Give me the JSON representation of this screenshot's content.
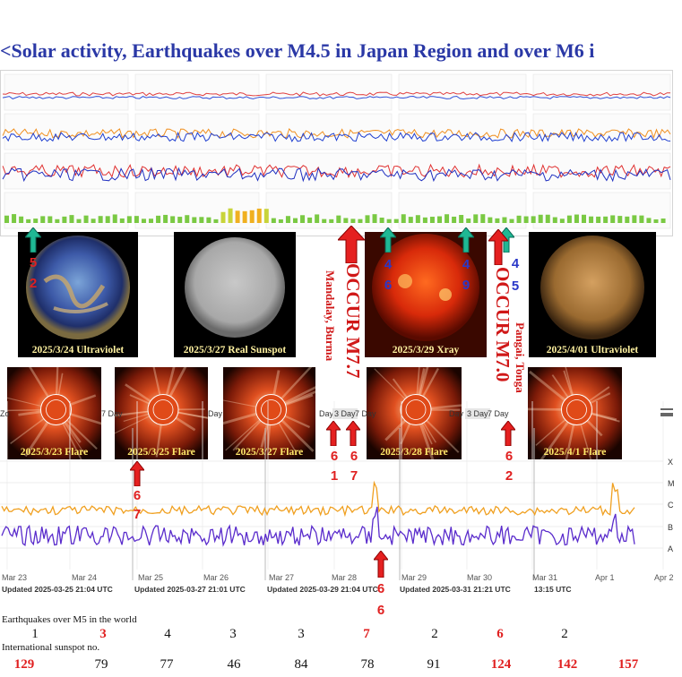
{
  "title": "<Solar activity, Earthquakes over M4.5 in Japan Region and over M6 i",
  "sun_images": [
    {
      "caption": "2025/3/24 Ultraviolet",
      "kind": "uv-blue"
    },
    {
      "caption": "2025/3/27 Real Sunspot",
      "kind": "gray"
    },
    {
      "caption": "2025/3/29 Xray",
      "kind": "xray"
    },
    {
      "caption": "2025/4/01 Ultraviolet",
      "kind": "uv-gold"
    }
  ],
  "flare_images": [
    {
      "caption": "2025/3/23 Flare"
    },
    {
      "caption": "2025/3/25 Flare"
    },
    {
      "caption": "2025/3/27 Flare"
    },
    {
      "caption": "2025/3/28 Flare"
    },
    {
      "caption": "2025/4/1 Flare"
    }
  ],
  "japan_quakes": [
    {
      "digits": [
        "5",
        "2"
      ],
      "color": "#e02020"
    },
    {
      "digits": [
        "4",
        "6"
      ],
      "color": "#2a38c8"
    },
    {
      "digits": [
        "4",
        "9"
      ],
      "color": "#2a38c8"
    },
    {
      "digits": [
        "4",
        "5"
      ],
      "color": "#2a38c8"
    }
  ],
  "world_quakes": [
    {
      "digits": [
        "6",
        "7"
      ]
    },
    {
      "digits": [
        "6",
        "1"
      ]
    },
    {
      "digits": [
        "6",
        "7"
      ]
    },
    {
      "digits": [
        "6",
        "6"
      ]
    },
    {
      "digits": [
        "6",
        "2"
      ]
    }
  ],
  "events": [
    {
      "label": "OCCUR M7.7",
      "digits": [
        "7",
        "7"
      ],
      "place": "Mandalay, Burma"
    },
    {
      "label": "OCCUR M7.0",
      "digits": [
        "7",
        "0"
      ],
      "place": "Pangai, Tonga"
    }
  ],
  "xray_chart": {
    "date_labels": [
      "Mar 23",
      "Mar 24",
      "Mar 25",
      "Mar 26",
      "Mar 27",
      "Mar 28",
      "Mar 29",
      "Mar 30",
      "Mar 31",
      "Apr 1",
      "Apr 2"
    ],
    "updated": [
      "Updated 2025-03-25 21:04 UTC",
      "Updated 2025-03-27 21:01 UTC",
      "Updated 2025-03-29 21:04 UTC",
      "Updated 2025-03-31 21:21 UTC",
      "13:15 UTC"
    ],
    "class_labels": [
      "X",
      "M",
      "C",
      "B",
      "A"
    ],
    "range_buttons": [
      "Day",
      "3 Day",
      "7 Day",
      "Day",
      "3 Day",
      "7 Day",
      "Day",
      "3 Day",
      "7 Day",
      "Zo"
    ],
    "colors": {
      "long": "#f0a020",
      "short": "#5a2ccc"
    }
  },
  "chart_data": {
    "type": "line",
    "title": "",
    "xlabel": "",
    "ylabel": "",
    "x": [
      "Mar 23",
      "Mar 24",
      "Mar 25",
      "Mar 26",
      "Mar 27",
      "Mar 28",
      "Mar 29",
      "Mar 30",
      "Mar 31",
      "Apr 1",
      "Apr 2"
    ],
    "y_classes": [
      "A",
      "B",
      "C",
      "M",
      "X"
    ],
    "series": [
      {
        "values": [
          2.2,
          2.5,
          2.4,
          2.6,
          2.5,
          2.5,
          2.6,
          2.7,
          2.6,
          2.8,
          2.6
        ]
      },
      {
        "values": [
          1.4,
          1.7,
          1.6,
          1.8,
          1.6,
          1.9,
          1.7,
          1.9,
          1.8,
          2.0,
          1.7
        ]
      }
    ]
  },
  "table": {
    "quake_label": "Earthquakes over M5 in the world",
    "quake_counts": [
      {
        "value": "1",
        "highlight": false
      },
      {
        "value": "3",
        "highlight": true
      },
      {
        "value": "4",
        "highlight": false
      },
      {
        "value": "3",
        "highlight": false
      },
      {
        "value": "3",
        "highlight": false
      },
      {
        "value": "7",
        "highlight": true
      },
      {
        "value": "2",
        "highlight": false
      },
      {
        "value": "6",
        "highlight": true
      },
      {
        "value": "2",
        "highlight": false
      }
    ],
    "sunspot_label": "International sunspot  no.",
    "sunspot_numbers": [
      {
        "value": "129",
        "highlight": true
      },
      {
        "value": "79",
        "highlight": false
      },
      {
        "value": "77",
        "highlight": false
      },
      {
        "value": "46",
        "highlight": false
      },
      {
        "value": "84",
        "highlight": false
      },
      {
        "value": "78",
        "highlight": false
      },
      {
        "value": "91",
        "highlight": false
      },
      {
        "value": "124",
        "highlight": true
      },
      {
        "value": "142",
        "highlight": true
      },
      {
        "value": "157",
        "highlight": true
      }
    ]
  }
}
